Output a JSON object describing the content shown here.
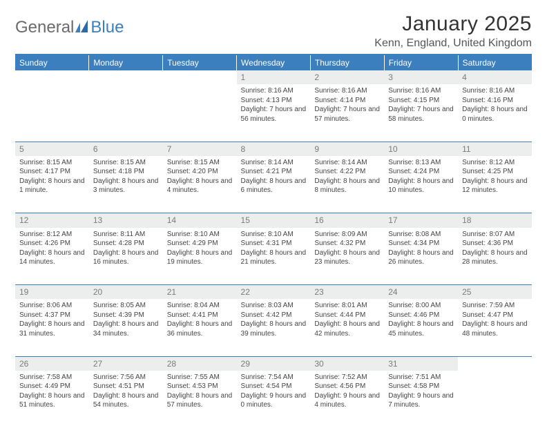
{
  "logo": {
    "word1": "General",
    "word2": "Blue"
  },
  "title": "January 2025",
  "location": "Kenn, England, United Kingdom",
  "colors": {
    "header_bg": "#3b7fbf",
    "header_text": "#ffffff",
    "daynum_bg": "#eceded",
    "daynum_text": "#7a7a7a",
    "body_text": "#444444",
    "rule": "#3b7fbf"
  },
  "dayHeaders": [
    "Sunday",
    "Monday",
    "Tuesday",
    "Wednesday",
    "Thursday",
    "Friday",
    "Saturday"
  ],
  "weeks": [
    [
      null,
      null,
      null,
      {
        "n": "1",
        "sunrise": "8:16 AM",
        "sunset": "4:13 PM",
        "daylight": "7 hours and 56 minutes."
      },
      {
        "n": "2",
        "sunrise": "8:16 AM",
        "sunset": "4:14 PM",
        "daylight": "7 hours and 57 minutes."
      },
      {
        "n": "3",
        "sunrise": "8:16 AM",
        "sunset": "4:15 PM",
        "daylight": "7 hours and 58 minutes."
      },
      {
        "n": "4",
        "sunrise": "8:16 AM",
        "sunset": "4:16 PM",
        "daylight": "8 hours and 0 minutes."
      }
    ],
    [
      {
        "n": "5",
        "sunrise": "8:15 AM",
        "sunset": "4:17 PM",
        "daylight": "8 hours and 1 minute."
      },
      {
        "n": "6",
        "sunrise": "8:15 AM",
        "sunset": "4:18 PM",
        "daylight": "8 hours and 3 minutes."
      },
      {
        "n": "7",
        "sunrise": "8:15 AM",
        "sunset": "4:20 PM",
        "daylight": "8 hours and 4 minutes."
      },
      {
        "n": "8",
        "sunrise": "8:14 AM",
        "sunset": "4:21 PM",
        "daylight": "8 hours and 6 minutes."
      },
      {
        "n": "9",
        "sunrise": "8:14 AM",
        "sunset": "4:22 PM",
        "daylight": "8 hours and 8 minutes."
      },
      {
        "n": "10",
        "sunrise": "8:13 AM",
        "sunset": "4:24 PM",
        "daylight": "8 hours and 10 minutes."
      },
      {
        "n": "11",
        "sunrise": "8:12 AM",
        "sunset": "4:25 PM",
        "daylight": "8 hours and 12 minutes."
      }
    ],
    [
      {
        "n": "12",
        "sunrise": "8:12 AM",
        "sunset": "4:26 PM",
        "daylight": "8 hours and 14 minutes."
      },
      {
        "n": "13",
        "sunrise": "8:11 AM",
        "sunset": "4:28 PM",
        "daylight": "8 hours and 16 minutes."
      },
      {
        "n": "14",
        "sunrise": "8:10 AM",
        "sunset": "4:29 PM",
        "daylight": "8 hours and 19 minutes."
      },
      {
        "n": "15",
        "sunrise": "8:10 AM",
        "sunset": "4:31 PM",
        "daylight": "8 hours and 21 minutes."
      },
      {
        "n": "16",
        "sunrise": "8:09 AM",
        "sunset": "4:32 PM",
        "daylight": "8 hours and 23 minutes."
      },
      {
        "n": "17",
        "sunrise": "8:08 AM",
        "sunset": "4:34 PM",
        "daylight": "8 hours and 26 minutes."
      },
      {
        "n": "18",
        "sunrise": "8:07 AM",
        "sunset": "4:36 PM",
        "daylight": "8 hours and 28 minutes."
      }
    ],
    [
      {
        "n": "19",
        "sunrise": "8:06 AM",
        "sunset": "4:37 PM",
        "daylight": "8 hours and 31 minutes."
      },
      {
        "n": "20",
        "sunrise": "8:05 AM",
        "sunset": "4:39 PM",
        "daylight": "8 hours and 34 minutes."
      },
      {
        "n": "21",
        "sunrise": "8:04 AM",
        "sunset": "4:41 PM",
        "daylight": "8 hours and 36 minutes."
      },
      {
        "n": "22",
        "sunrise": "8:03 AM",
        "sunset": "4:42 PM",
        "daylight": "8 hours and 39 minutes."
      },
      {
        "n": "23",
        "sunrise": "8:01 AM",
        "sunset": "4:44 PM",
        "daylight": "8 hours and 42 minutes."
      },
      {
        "n": "24",
        "sunrise": "8:00 AM",
        "sunset": "4:46 PM",
        "daylight": "8 hours and 45 minutes."
      },
      {
        "n": "25",
        "sunrise": "7:59 AM",
        "sunset": "4:47 PM",
        "daylight": "8 hours and 48 minutes."
      }
    ],
    [
      {
        "n": "26",
        "sunrise": "7:58 AM",
        "sunset": "4:49 PM",
        "daylight": "8 hours and 51 minutes."
      },
      {
        "n": "27",
        "sunrise": "7:56 AM",
        "sunset": "4:51 PM",
        "daylight": "8 hours and 54 minutes."
      },
      {
        "n": "28",
        "sunrise": "7:55 AM",
        "sunset": "4:53 PM",
        "daylight": "8 hours and 57 minutes."
      },
      {
        "n": "29",
        "sunrise": "7:54 AM",
        "sunset": "4:54 PM",
        "daylight": "9 hours and 0 minutes."
      },
      {
        "n": "30",
        "sunrise": "7:52 AM",
        "sunset": "4:56 PM",
        "daylight": "9 hours and 4 minutes."
      },
      {
        "n": "31",
        "sunrise": "7:51 AM",
        "sunset": "4:58 PM",
        "daylight": "9 hours and 7 minutes."
      },
      null
    ]
  ],
  "labels": {
    "sunrise": "Sunrise:",
    "sunset": "Sunset:",
    "daylight": "Daylight:"
  }
}
